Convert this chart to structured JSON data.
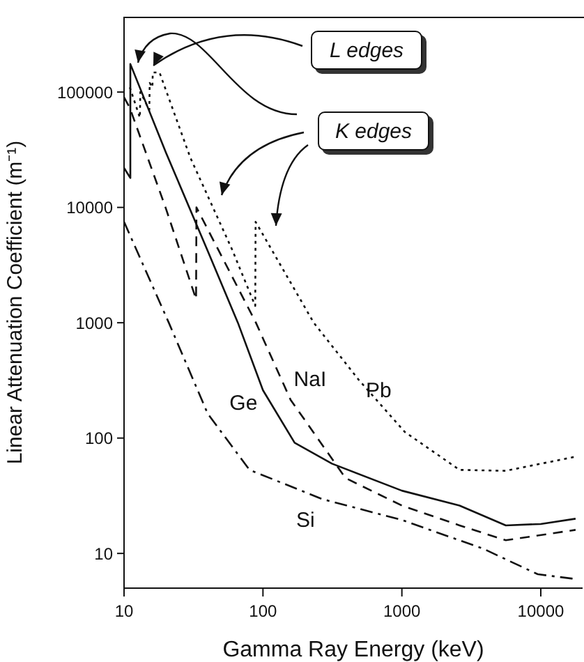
{
  "chart_data": {
    "type": "line",
    "xlabel": "Gamma Ray Energy (keV)",
    "ylabel": "Linear Attenuation Coefficient (m⁻¹)",
    "log": "xy",
    "grid": false,
    "legend": false,
    "marker": "none",
    "xlim": [
      10,
      20000
    ],
    "xticks": [
      10,
      100,
      1000,
      10000
    ],
    "ylim": [
      5,
      450000
    ],
    "yticks": [
      10,
      100,
      1000,
      10000,
      100000
    ],
    "annotations": [
      "L edges",
      "K edges"
    ],
    "series": [
      {
        "name": "Ge",
        "color": "#111111",
        "line_style": "solid",
        "x": [
          10,
          11.1,
          11.1,
          20,
          40,
          66,
          100,
          169,
          314,
          1000,
          2600,
          5600,
          10000,
          17800
        ],
        "values": [
          22000,
          18000,
          175000,
          30000,
          4200,
          1000,
          260,
          91,
          60,
          35,
          26,
          17.5,
          18,
          20
        ]
      },
      {
        "name": "NaI",
        "color": "#111111",
        "line_style": "dashed",
        "x": [
          10,
          11,
          20,
          33,
          33.2,
          89,
          158,
          393,
          1000,
          2600,
          5600,
          17800
        ],
        "values": [
          90000,
          73000,
          9800,
          1600,
          10000,
          1000,
          215,
          45,
          26,
          17.5,
          13,
          16
        ]
      },
      {
        "name": "Pb",
        "color": "#111111",
        "line_style": "dotted",
        "x": [
          11,
          13,
          13.1,
          15.2,
          15.3,
          16,
          16.1,
          18,
          30,
          60,
          88,
          88.5,
          232,
          493,
          1050,
          2600,
          5600,
          17800
        ],
        "values": [
          110000,
          60000,
          100000,
          70000,
          120000,
          110000,
          148000,
          148000,
          27000,
          4300,
          1400,
          7500,
          1000,
          316,
          113,
          53,
          52,
          69
        ]
      },
      {
        "name": "Si",
        "color": "#111111",
        "line_style": "dashdot",
        "x": [
          10,
          21,
          40,
          80,
          267,
          1000,
          3840,
          9500,
          17800
        ],
        "values": [
          7500,
          1000,
          163,
          53,
          29.6,
          19.5,
          11,
          6.6,
          6
        ]
      }
    ]
  }
}
